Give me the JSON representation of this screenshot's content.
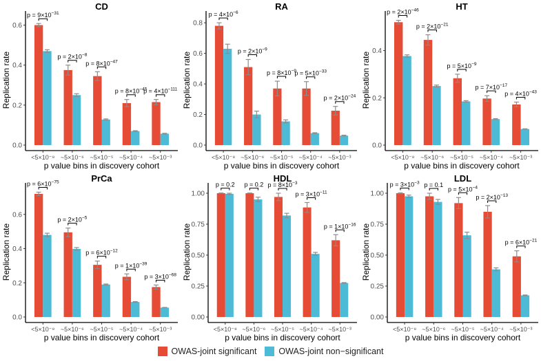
{
  "chart_data": {
    "type": "bar",
    "layout": "2x3 grid of grouped bar panels",
    "colors": {
      "significant": "#E64B35",
      "non_significant": "#4DBBD5",
      "error_bar": "#8c8c8c"
    },
    "legend": {
      "placement": "bottom",
      "entries": [
        "OWAS-joint significant",
        "OWAS-joint non−significant"
      ]
    },
    "panels": [
      {
        "title": "CD",
        "xlabel": "p value bins in discovery cohort",
        "ylabel": "Replication rate",
        "categories": [
          "<5×10⁻⁸",
          "~5×10⁻⁶",
          "~5×10⁻⁵",
          "~5×10⁻⁴",
          "~5×10⁻³"
        ],
        "ylim": [
          0,
          0.65
        ],
        "yticks": [
          0.0,
          0.2,
          0.4,
          0.6
        ],
        "ytick_labels": [
          "0.0",
          "0.2",
          "0.4",
          "0.6"
        ],
        "series": [
          {
            "name": "OWAS-joint significant",
            "values": [
              0.6,
              0.375,
              0.345,
              0.21,
              0.215
            ],
            "err": [
              0.008,
              0.025,
              0.022,
              0.018,
              0.013
            ]
          },
          {
            "name": "OWAS-joint non−significant",
            "values": [
              0.47,
              0.25,
              0.128,
              0.07,
              0.057
            ],
            "err": [
              0.007,
              0.007,
              0.003,
              0.002,
              0.002
            ]
          }
        ],
        "pvalues": [
          [
            "9",
            "−31"
          ],
          [
            "2",
            "−8"
          ],
          [
            "8",
            "−47"
          ],
          [
            "8",
            "−45"
          ],
          [
            "4",
            "−111"
          ]
        ]
      },
      {
        "title": "RA",
        "xlabel": "p value bins in discovery cohort",
        "ylabel": "Replication rate",
        "categories": [
          "<5×10⁻⁸",
          "~5×10⁻⁶",
          "~5×10⁻⁵",
          "~5×10⁻⁴",
          "~5×10⁻³"
        ],
        "ylim": [
          0,
          0.85
        ],
        "yticks": [
          0.0,
          0.2,
          0.4,
          0.6,
          0.8
        ],
        "ytick_labels": [
          "0.0",
          "0.2",
          "0.4",
          "0.6",
          "0.8"
        ],
        "series": [
          {
            "name": "OWAS-joint significant",
            "values": [
              0.78,
              0.51,
              0.37,
              0.37,
              0.225
            ],
            "err": [
              0.02,
              0.05,
              0.048,
              0.045,
              0.028
            ]
          },
          {
            "name": "OWAS-joint non−significant",
            "values": [
              0.63,
              0.2,
              0.155,
              0.078,
              0.062
            ],
            "err": [
              0.03,
              0.022,
              0.01,
              0.003,
              0.003
            ]
          }
        ],
        "pvalues": [
          [
            "4",
            "−6"
          ],
          [
            "2",
            "−9"
          ],
          [
            "8",
            "−9"
          ],
          [
            "5",
            "−33"
          ],
          [
            "2",
            "−24"
          ]
        ]
      },
      {
        "title": "HT",
        "xlabel": "p value bins in discovery cohort",
        "ylabel": "Replication rate",
        "categories": [
          "<5×10⁻⁸",
          "~5×10⁻⁶",
          "~5×10⁻⁵",
          "~5×10⁻⁴",
          "~5×10⁻³"
        ],
        "ylim": [
          0,
          0.55
        ],
        "yticks": [
          0.0,
          0.2,
          0.4
        ],
        "ytick_labels": [
          "0.0",
          "0.2",
          "0.4"
        ],
        "series": [
          {
            "name": "OWAS-joint significant",
            "values": [
              0.52,
              0.445,
              0.283,
              0.197,
              0.172
            ],
            "err": [
              0.008,
              0.022,
              0.017,
              0.012,
              0.01
            ]
          },
          {
            "name": "OWAS-joint non−significant",
            "values": [
              0.377,
              0.25,
              0.185,
              0.11,
              0.068
            ],
            "err": [
              0.005,
              0.004,
              0.003,
              0.002,
              0.001
            ]
          }
        ],
        "pvalues": [
          [
            "2",
            "−46"
          ],
          [
            "2",
            "−21"
          ],
          [
            "5",
            "−9"
          ],
          [
            "7",
            "−17"
          ],
          [
            "4",
            "−43"
          ]
        ]
      },
      {
        "title": "PrCa",
        "xlabel": "p value bins in discovery cohort",
        "ylabel": "Replication rate",
        "categories": [
          "<5×10⁻⁸",
          "~5×10⁻⁶",
          "~5×10⁻⁵",
          "~5×10⁻⁴",
          "~5×10⁻³"
        ],
        "ylim": [
          0,
          0.76
        ],
        "yticks": [
          0.0,
          0.2,
          0.4,
          0.6
        ],
        "ytick_labels": [
          "0.0",
          "0.2",
          "0.4",
          "0.6"
        ],
        "series": [
          {
            "name": "OWAS-joint significant",
            "values": [
              0.72,
              0.495,
              0.305,
              0.235,
              0.175
            ],
            "err": [
              0.01,
              0.025,
              0.022,
              0.017,
              0.012
            ]
          },
          {
            "name": "OWAS-joint non−significant",
            "values": [
              0.48,
              0.398,
              0.19,
              0.088,
              0.055
            ],
            "err": [
              0.01,
              0.008,
              0.003,
              0.002,
              0.001
            ]
          }
        ],
        "pvalues": [
          [
            "6",
            "−75"
          ],
          [
            "2",
            "−5"
          ],
          [
            "6",
            "−12"
          ],
          [
            "1",
            "−39"
          ],
          [
            "3",
            "−68"
          ]
        ]
      },
      {
        "title": "HDL",
        "xlabel": "p value bins in discovery cohort",
        "ylabel": "Replication rate",
        "categories": [
          "<5×10⁻⁸",
          "~5×10⁻⁶",
          "~5×10⁻⁵",
          "~5×10⁻⁴",
          "~5×10⁻³"
        ],
        "ylim": [
          0,
          1.05
        ],
        "yticks": [
          0.0,
          0.25,
          0.5,
          0.75,
          1.0
        ],
        "ytick_labels": [
          "0.00",
          "0.25",
          "0.50",
          "0.75",
          "1.00"
        ],
        "series": [
          {
            "name": "OWAS-joint significant",
            "values": [
              1.0,
              1.0,
              0.97,
              0.885,
              0.62
            ],
            "err": [
              0.002,
              0.002,
              0.03,
              0.04,
              0.045
            ]
          },
          {
            "name": "OWAS-joint non−significant",
            "values": [
              0.995,
              0.95,
              0.82,
              0.51,
              0.275
            ],
            "err": [
              0.005,
              0.018,
              0.018,
              0.012,
              0.003
            ]
          }
        ],
        "pvalues": [
          [
            "0.2",
            ""
          ],
          [
            "0.2",
            ""
          ],
          [
            "8",
            "−3"
          ],
          [
            "3",
            "−11"
          ],
          [
            "1",
            "−16"
          ]
        ]
      },
      {
        "title": "LDL",
        "xlabel": "p value bins in discovery cohort",
        "ylabel": "Replication rate",
        "categories": [
          "<5×10⁻⁸",
          "~5×10⁻⁶",
          "~5×10⁻⁵",
          "~5×10⁻⁴",
          "~5×10⁻³"
        ],
        "ylim": [
          0,
          1.05
        ],
        "yticks": [
          0.0,
          0.25,
          0.5,
          0.75,
          1.0
        ],
        "ytick_labels": [
          "0.00",
          "0.25",
          "0.50",
          "0.75",
          "1.00"
        ],
        "series": [
          {
            "name": "OWAS-joint significant",
            "values": [
              1.0,
              0.975,
              0.92,
              0.85,
              0.49
            ],
            "err": [
              0.003,
              0.025,
              0.045,
              0.05,
              0.045
            ]
          },
          {
            "name": "OWAS-joint non−significant",
            "values": [
              0.975,
              0.93,
              0.66,
              0.385,
              0.175
            ],
            "err": [
              0.01,
              0.02,
              0.025,
              0.012,
              0.003
            ]
          }
        ],
        "pvalues": [
          [
            "3",
            "−3"
          ],
          [
            "0.1",
            ""
          ],
          [
            "5",
            "−4"
          ],
          [
            "2",
            "−13"
          ],
          [
            "6",
            "−21"
          ]
        ]
      }
    ]
  }
}
